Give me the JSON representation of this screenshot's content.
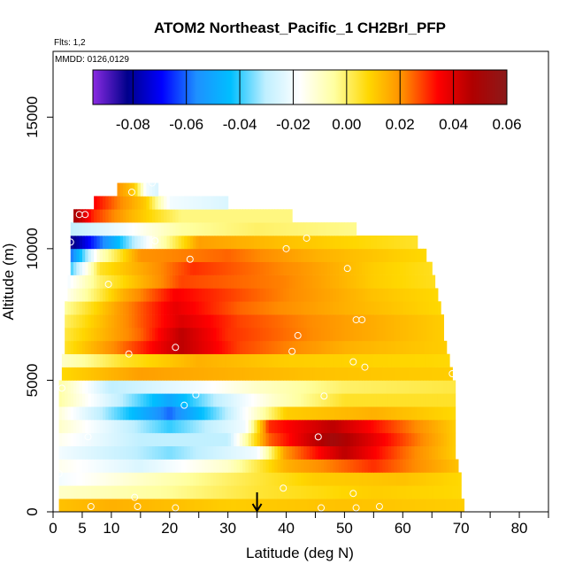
{
  "chart_data": {
    "type": "heatmap",
    "title": "ATOM2 Northeast_Pacific_1 CH2BrI_PFP",
    "flights_label": "Flts: 1,2",
    "mmdd_label": "MMDD: 0126,0129",
    "xlabel": "Latitude (deg N)",
    "ylabel": "Altitude (m)",
    "xlim": [
      0,
      85
    ],
    "ylim": [
      0,
      17500
    ],
    "x_ticks": [
      0,
      5,
      10,
      20,
      30,
      40,
      50,
      60,
      70,
      80
    ],
    "x_tick_labels": [
      "0",
      "5",
      "10",
      "20",
      "30",
      "40",
      "50",
      "60",
      "70",
      "80"
    ],
    "x_minor_ticks": [
      15,
      25,
      35,
      45,
      55,
      65,
      75,
      85
    ],
    "y_ticks": [
      0,
      5000,
      10000,
      15000
    ],
    "y_tick_labels": [
      "0",
      "5000",
      "10000",
      "15000"
    ],
    "colorbar": {
      "min": -0.095,
      "max": 0.06,
      "ticks": [
        -0.08,
        -0.06,
        -0.04,
        -0.02,
        0.0,
        0.02,
        0.04,
        0.06
      ],
      "tick_labels": [
        "-0.08",
        "-0.06",
        "-0.04",
        "-0.02",
        "0.00",
        "0.02",
        "0.04",
        "0.06"
      ],
      "colors": [
        "#8a2be2",
        "#00008b",
        "#0000ff",
        "#1e90ff",
        "#00bfff",
        "#bfefff",
        "#ffffff",
        "#ffffa0",
        "#ffd700",
        "#ff8c00",
        "#ff0000",
        "#b00000",
        "#8b1a1a"
      ]
    },
    "arrow_latitude": 35,
    "bands": [
      {
        "y0": 0,
        "y1": 500,
        "x0": 1,
        "x1": 70.5,
        "stops": [
          [
            1,
            0.012
          ],
          [
            10,
            0.015
          ],
          [
            30,
            0.01
          ],
          [
            50,
            0.012
          ],
          [
            70.5,
            0.01
          ]
        ]
      },
      {
        "y0": 500,
        "y1": 1000,
        "x0": 1,
        "x1": 70,
        "stops": [
          [
            1,
            -0.01
          ],
          [
            20,
            -0.004
          ],
          [
            35,
            0.004
          ],
          [
            55,
            0.01
          ],
          [
            70,
            0.008
          ]
        ]
      },
      {
        "y0": 1000,
        "y1": 1500,
        "x0": 1,
        "x1": 70,
        "stops": [
          [
            1,
            -0.02
          ],
          [
            15,
            -0.01
          ],
          [
            30,
            0.0
          ],
          [
            45,
            0.01
          ],
          [
            60,
            0.012
          ],
          [
            70,
            0.008
          ]
        ]
      },
      {
        "y0": 1500,
        "y1": 2000,
        "x0": 1,
        "x1": 69.5,
        "stops": [
          [
            1,
            -0.015
          ],
          [
            15,
            -0.025
          ],
          [
            30,
            -0.01
          ],
          [
            40,
            0.015
          ],
          [
            55,
            0.03
          ],
          [
            69.5,
            0.012
          ]
        ]
      },
      {
        "y0": 2000,
        "y1": 2500,
        "x0": 1,
        "x1": 69,
        "stops": [
          [
            1,
            -0.02
          ],
          [
            20,
            -0.035
          ],
          [
            35,
            -0.02
          ],
          [
            40,
            0.02
          ],
          [
            50,
            0.045
          ],
          [
            60,
            0.025
          ],
          [
            69,
            0.01
          ]
        ]
      },
      {
        "y0": 2500,
        "y1": 3000,
        "x0": 1,
        "x1": 69,
        "stops": [
          [
            1,
            -0.015
          ],
          [
            15,
            -0.03
          ],
          [
            30,
            -0.03
          ],
          [
            37,
            0.025
          ],
          [
            48,
            0.052
          ],
          [
            60,
            0.028
          ],
          [
            69,
            0.01
          ]
        ]
      },
      {
        "y0": 3000,
        "y1": 3500,
        "x0": 1,
        "x1": 69,
        "stops": [
          [
            1,
            -0.01
          ],
          [
            20,
            -0.04
          ],
          [
            33,
            -0.02
          ],
          [
            37,
            0.03
          ],
          [
            48,
            0.045
          ],
          [
            60,
            0.025
          ],
          [
            69,
            0.01
          ]
        ]
      },
      {
        "y0": 3500,
        "y1": 4000,
        "x0": 1,
        "x1": 69,
        "stops": [
          [
            1,
            -0.012
          ],
          [
            20,
            -0.06
          ],
          [
            30,
            -0.03
          ],
          [
            40,
            0.01
          ],
          [
            55,
            0.015
          ],
          [
            69,
            0.008
          ]
        ]
      },
      {
        "y0": 4000,
        "y1": 4500,
        "x0": 1,
        "x1": 69,
        "stops": [
          [
            1,
            -0.005
          ],
          [
            20,
            -0.05
          ],
          [
            28,
            -0.03
          ],
          [
            38,
            -0.01
          ],
          [
            50,
            0.005
          ],
          [
            69,
            0.005
          ]
        ]
      },
      {
        "y0": 4500,
        "y1": 5000,
        "x0": 1,
        "x1": 69,
        "stops": [
          [
            1,
            -0.005
          ],
          [
            10,
            -0.03
          ],
          [
            25,
            -0.02
          ],
          [
            35,
            -0.01
          ],
          [
            50,
            0.0
          ],
          [
            69,
            0.003
          ]
        ]
      },
      {
        "y0": 5000,
        "y1": 5500,
        "x0": 1.5,
        "x1": 68.5,
        "stops": [
          [
            1.5,
            0.008
          ],
          [
            15,
            0.018
          ],
          [
            30,
            0.015
          ],
          [
            45,
            0.012
          ],
          [
            68.5,
            0.01
          ]
        ]
      },
      {
        "y0": 5500,
        "y1": 6000,
        "x0": 1.5,
        "x1": 68,
        "stops": [
          [
            1.5,
            -0.01
          ],
          [
            12,
            0.005
          ],
          [
            25,
            0.015
          ],
          [
            40,
            0.01
          ],
          [
            68,
            0.008
          ]
        ]
      },
      {
        "y0": 6000,
        "y1": 6500,
        "x0": 2,
        "x1": 67.5,
        "stops": [
          [
            2,
            0.005
          ],
          [
            15,
            0.03
          ],
          [
            22,
            0.045
          ],
          [
            32,
            0.028
          ],
          [
            50,
            0.015
          ],
          [
            67.5,
            0.01
          ]
        ]
      },
      {
        "y0": 6500,
        "y1": 7000,
        "x0": 2,
        "x1": 67,
        "stops": [
          [
            2,
            0.003
          ],
          [
            15,
            0.025
          ],
          [
            22,
            0.045
          ],
          [
            30,
            0.03
          ],
          [
            50,
            0.018
          ],
          [
            67,
            0.01
          ]
        ]
      },
      {
        "y0": 7000,
        "y1": 7500,
        "x0": 2,
        "x1": 67,
        "stops": [
          [
            2,
            0.0
          ],
          [
            12,
            0.02
          ],
          [
            22,
            0.04
          ],
          [
            32,
            0.028
          ],
          [
            50,
            0.018
          ],
          [
            67,
            0.01
          ]
        ]
      },
      {
        "y0": 7500,
        "y1": 8000,
        "x0": 2,
        "x1": 66.5,
        "stops": [
          [
            2,
            -0.005
          ],
          [
            12,
            0.02
          ],
          [
            21,
            0.038
          ],
          [
            32,
            0.025
          ],
          [
            50,
            0.015
          ],
          [
            66.5,
            0.008
          ]
        ]
      },
      {
        "y0": 8000,
        "y1": 8500,
        "x0": 2.5,
        "x1": 66,
        "stops": [
          [
            2.5,
            -0.015
          ],
          [
            12,
            0.015
          ],
          [
            21,
            0.035
          ],
          [
            35,
            0.025
          ],
          [
            55,
            0.012
          ],
          [
            66,
            0.008
          ]
        ]
      },
      {
        "y0": 8500,
        "y1": 9000,
        "x0": 2.5,
        "x1": 65.5,
        "stops": [
          [
            2.5,
            -0.02
          ],
          [
            8,
            0.0
          ],
          [
            22,
            0.028
          ],
          [
            40,
            0.022
          ],
          [
            55,
            0.01
          ],
          [
            65.5,
            0.006
          ]
        ]
      },
      {
        "y0": 9000,
        "y1": 9500,
        "x0": 3,
        "x1": 65,
        "stops": [
          [
            3,
            -0.04
          ],
          [
            8,
            0.005
          ],
          [
            24,
            0.03
          ],
          [
            42,
            0.02
          ],
          [
            55,
            0.01
          ],
          [
            65,
            0.006
          ]
        ]
      },
      {
        "y0": 9500,
        "y1": 10000,
        "x0": 3,
        "x1": 64,
        "stops": [
          [
            3,
            -0.06
          ],
          [
            8,
            -0.01
          ],
          [
            15,
            0.02
          ],
          [
            30,
            0.025
          ],
          [
            45,
            0.015
          ],
          [
            64,
            0.008
          ]
        ]
      },
      {
        "y0": 10000,
        "y1": 10500,
        "x0": 3,
        "x1": 62.5,
        "stops": [
          [
            3,
            -0.085
          ],
          [
            10,
            -0.05
          ],
          [
            18,
            -0.01
          ],
          [
            25,
            0.018
          ],
          [
            40,
            0.012
          ],
          [
            62.5,
            0.005
          ]
        ]
      },
      {
        "y0": 10500,
        "y1": 11000,
        "x0": 3,
        "x1": 52,
        "stops": [
          [
            3,
            -0.03
          ],
          [
            12,
            -0.02
          ],
          [
            22,
            -0.005
          ],
          [
            35,
            0.0
          ],
          [
            52,
            -0.003
          ]
        ]
      },
      {
        "y0": 11000,
        "y1": 11500,
        "x0": 3.5,
        "x1": 41,
        "stops": [
          [
            3.5,
            0.05
          ],
          [
            7,
            0.03
          ],
          [
            13,
            0.015
          ],
          [
            22,
            -0.002
          ],
          [
            41,
            -0.002
          ]
        ]
      },
      {
        "y0": 11500,
        "y1": 12000,
        "x0": 7,
        "x1": 30,
        "stops": [
          [
            7,
            0.035
          ],
          [
            12,
            0.02
          ],
          [
            16,
            0.01
          ],
          [
            20,
            -0.02
          ],
          [
            30,
            -0.025
          ]
        ]
      },
      {
        "y0": 12000,
        "y1": 12500,
        "x0": 11,
        "x1": 18,
        "stops": [
          [
            11,
            0.02
          ],
          [
            14,
            0.01
          ],
          [
            16,
            -0.02
          ],
          [
            18,
            -0.025
          ]
        ]
      }
    ],
    "sample_points": [
      [
        4.5,
        11300
      ],
      [
        5.5,
        11300
      ],
      [
        3,
        10250
      ],
      [
        13.5,
        12150
      ],
      [
        17,
        12500
      ],
      [
        17.5,
        10300
      ],
      [
        9.5,
        8650
      ],
      [
        23.5,
        9600
      ],
      [
        40,
        10000
      ],
      [
        43.5,
        10400
      ],
      [
        50.5,
        9250
      ],
      [
        42,
        6700
      ],
      [
        52,
        7300
      ],
      [
        53,
        7300
      ],
      [
        21,
        6250
      ],
      [
        13,
        6000
      ],
      [
        41,
        6100
      ],
      [
        51.5,
        5700
      ],
      [
        53.5,
        5500
      ],
      [
        68.5,
        5250
      ],
      [
        1.5,
        4700
      ],
      [
        24.5,
        4450
      ],
      [
        22.5,
        4050
      ],
      [
        46.5,
        4400
      ],
      [
        6,
        2850
      ],
      [
        45.5,
        2850
      ],
      [
        1,
        1450
      ],
      [
        39.5,
        900
      ],
      [
        51.5,
        700
      ],
      [
        14,
        550
      ],
      [
        6.5,
        200
      ],
      [
        14.5,
        200
      ],
      [
        21,
        150
      ],
      [
        46,
        150
      ],
      [
        52,
        150
      ],
      [
        56,
        200
      ]
    ]
  }
}
